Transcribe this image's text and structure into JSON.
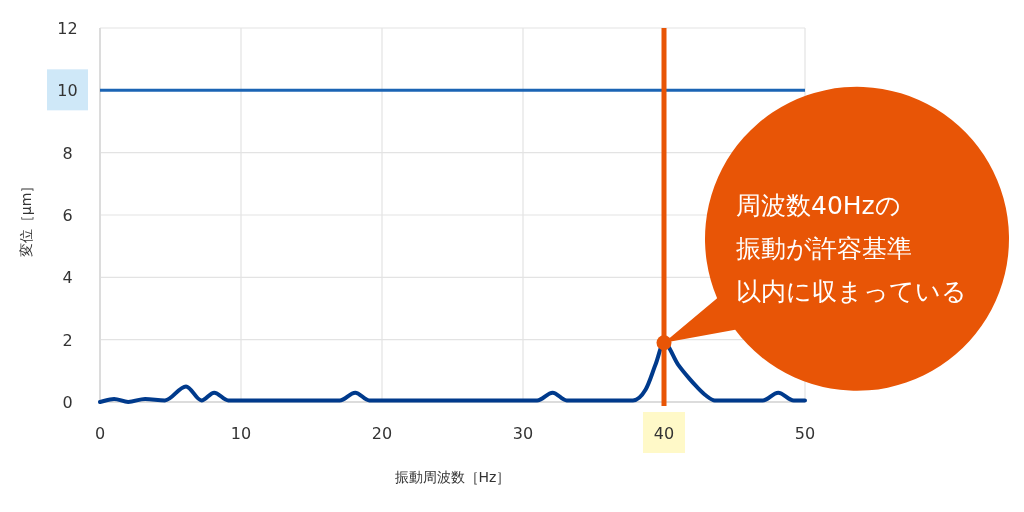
{
  "chart_data": {
    "type": "line",
    "xlabel": "振動周波数［Hz］",
    "ylabel": "変位［μm］",
    "series": [
      {
        "color": "#003a8c",
        "line_style": "solid",
        "x": [
          0,
          1,
          2,
          3.2,
          4.6,
          6.1,
          7.2,
          8.1,
          9.1,
          17,
          18.1,
          19.1,
          31,
          32.1,
          33.1,
          37.8,
          38.7,
          39.4,
          40,
          41,
          41.8,
          42.3,
          43,
          43.6,
          47,
          48.1,
          49.2,
          50
        ],
        "values": [
          0,
          0.1,
          0,
          0.1,
          0.05,
          0.5,
          0.05,
          0.3,
          0.05,
          0.05,
          0.3,
          0.05,
          0.05,
          0.3,
          0.05,
          0.05,
          0.4,
          1.2,
          1.9,
          1.2,
          0.75,
          0.5,
          0.2,
          0.05,
          0.05,
          0.3,
          0.05,
          0.05
        ]
      }
    ],
    "xlim": [
      0,
      50
    ],
    "ylim": [
      0,
      12
    ],
    "xticks": [
      0,
      10,
      20,
      30,
      40,
      50
    ],
    "yticks": [
      0,
      2,
      4,
      6,
      8,
      10,
      12
    ],
    "grid": true,
    "ref_lines": [
      {
        "axis": "y",
        "value": 10,
        "color": "#1b64b4"
      },
      {
        "axis": "x",
        "value": 40,
        "color": "#e85506"
      }
    ],
    "annotations": [
      "周波数40Hzの振動が許容基準以内に収まっている"
    ]
  }
}
